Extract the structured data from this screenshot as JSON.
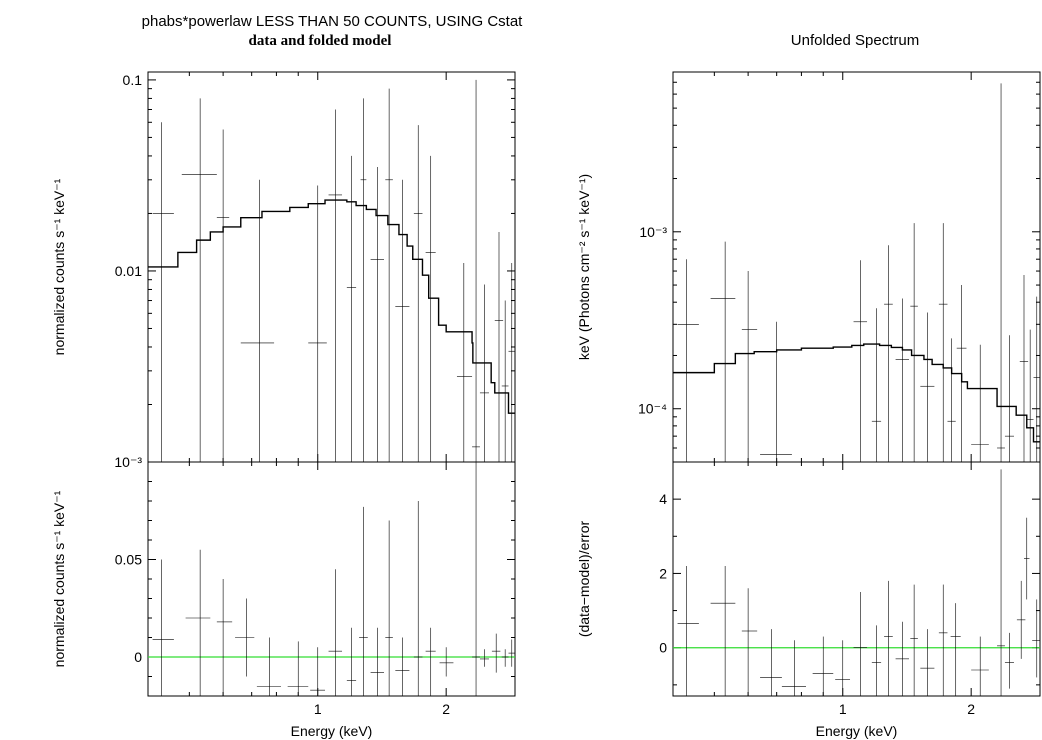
{
  "left_title": "phabs*powerlaw LESS THAN 50 COUNTS, USING Cstat",
  "left_subtitle": "data and folded model",
  "right_title": "Unfolded Spectrum",
  "colors": {
    "data": "#000000",
    "model": "#000000",
    "zero_line": "#33dd33"
  },
  "chart_data": [
    {
      "type": "scatter",
      "panel": "top-left",
      "ylabel": "normalized counts s⁻¹ keV⁻¹",
      "xscale": "log",
      "yscale": "log",
      "xlim": [
        0.4,
        2.9
      ],
      "ylim": [
        0.001,
        0.11
      ],
      "yticks": [
        {
          "v": 0.001,
          "label": "10⁻³"
        },
        {
          "v": 0.01,
          "label": "0.01"
        },
        {
          "v": 0.1,
          "label": "0.1"
        }
      ],
      "points": [
        {
          "x": 0.43,
          "xlo": 0.41,
          "xhi": 0.46,
          "y": 0.02,
          "ylo": 0.001,
          "yhi": 0.06
        },
        {
          "x": 0.53,
          "xlo": 0.48,
          "xhi": 0.58,
          "y": 0.032,
          "ylo": 0.001,
          "yhi": 0.08
        },
        {
          "x": 0.6,
          "xlo": 0.58,
          "xhi": 0.62,
          "y": 0.019,
          "ylo": 0.001,
          "yhi": 0.055
        },
        {
          "x": 0.73,
          "xlo": 0.66,
          "xhi": 0.79,
          "y": 0.0042,
          "ylo": 0.001,
          "yhi": 0.03
        },
        {
          "x": 1.0,
          "xlo": 0.95,
          "xhi": 1.05,
          "y": 0.0042,
          "ylo": 0.001,
          "yhi": 0.028
        },
        {
          "x": 1.1,
          "xlo": 1.06,
          "xhi": 1.14,
          "y": 0.025,
          "ylo": 0.001,
          "yhi": 0.07
        },
        {
          "x": 1.2,
          "xlo": 1.17,
          "xhi": 1.23,
          "y": 0.0082,
          "ylo": 0.001,
          "yhi": 0.04
        },
        {
          "x": 1.28,
          "xlo": 1.26,
          "xhi": 1.3,
          "y": 0.03,
          "ylo": 0.001,
          "yhi": 0.08
        },
        {
          "x": 1.38,
          "xlo": 1.33,
          "xhi": 1.43,
          "y": 0.0115,
          "ylo": 0.001,
          "yhi": 0.035
        },
        {
          "x": 1.47,
          "xlo": 1.44,
          "xhi": 1.5,
          "y": 0.03,
          "ylo": 0.001,
          "yhi": 0.09
        },
        {
          "x": 1.58,
          "xlo": 1.52,
          "xhi": 1.64,
          "y": 0.0065,
          "ylo": 0.001,
          "yhi": 0.03
        },
        {
          "x": 1.72,
          "xlo": 1.68,
          "xhi": 1.76,
          "y": 0.02,
          "ylo": 0.001,
          "yhi": 0.058
        },
        {
          "x": 1.84,
          "xlo": 1.79,
          "xhi": 1.89,
          "y": 0.0125,
          "ylo": 0.001,
          "yhi": 0.04
        },
        {
          "x": 2.2,
          "xlo": 2.12,
          "xhi": 2.3,
          "y": 0.0028,
          "ylo": 0.001,
          "yhi": 0.011
        },
        {
          "x": 2.35,
          "xlo": 2.3,
          "xhi": 2.4,
          "y": 0.0012,
          "ylo": 0.001,
          "yhi": 0.1
        },
        {
          "x": 2.46,
          "xlo": 2.4,
          "xhi": 2.52,
          "y": 0.0023,
          "ylo": 0.001,
          "yhi": 0.0085
        },
        {
          "x": 2.66,
          "xlo": 2.6,
          "xhi": 2.72,
          "y": 0.0055,
          "ylo": 0.001,
          "yhi": 0.016
        },
        {
          "x": 2.75,
          "xlo": 2.7,
          "xhi": 2.8,
          "y": 0.0025,
          "ylo": 0.001,
          "yhi": 0.007
        },
        {
          "x": 2.85,
          "xlo": 2.8,
          "xhi": 2.9,
          "y": 0.0038,
          "ylo": 0.001,
          "yhi": 0.011
        }
      ],
      "model_step": [
        [
          0.4,
          0.0105
        ],
        [
          0.47,
          0.0125
        ],
        [
          0.52,
          0.0145
        ],
        [
          0.56,
          0.016
        ],
        [
          0.6,
          0.017
        ],
        [
          0.66,
          0.019
        ],
        [
          0.74,
          0.0205
        ],
        [
          0.86,
          0.0215
        ],
        [
          0.95,
          0.0225
        ],
        [
          1.04,
          0.0235
        ],
        [
          1.1,
          0.0235
        ],
        [
          1.17,
          0.023
        ],
        [
          1.23,
          0.022
        ],
        [
          1.3,
          0.021
        ],
        [
          1.37,
          0.0195
        ],
        [
          1.46,
          0.0175
        ],
        [
          1.55,
          0.0155
        ],
        [
          1.62,
          0.0135
        ],
        [
          1.67,
          0.0115
        ],
        [
          1.76,
          0.0095
        ],
        [
          1.82,
          0.0072
        ],
        [
          1.92,
          0.0052
        ],
        [
          2.0,
          0.0048
        ],
        [
          2.3,
          0.0042
        ],
        [
          2.31,
          0.0033
        ],
        [
          2.5,
          0.0033
        ],
        [
          2.55,
          0.0026
        ],
        [
          2.6,
          0.0023
        ],
        [
          2.8,
          0.0018
        ],
        [
          2.9,
          0.0018
        ]
      ]
    },
    {
      "type": "scatter",
      "panel": "bottom-left",
      "ylabel": "normalized counts s⁻¹ keV⁻¹",
      "xlabel": "Energy (keV)",
      "xscale": "log",
      "yscale": "linear",
      "xlim": [
        0.4,
        2.9
      ],
      "ylim": [
        -0.02,
        0.1
      ],
      "yticks": [
        {
          "v": 0,
          "label": "0"
        },
        {
          "v": 0.05,
          "label": "0.05"
        }
      ],
      "xticks": [
        {
          "v": 1,
          "label": "1"
        },
        {
          "v": 2,
          "label": "2"
        }
      ],
      "points": [
        {
          "x": 0.43,
          "xlo": 0.41,
          "xhi": 0.46,
          "y": 0.009,
          "ylo": -0.02,
          "yhi": 0.05
        },
        {
          "x": 0.53,
          "xlo": 0.49,
          "xhi": 0.56,
          "y": 0.02,
          "ylo": -0.02,
          "yhi": 0.055
        },
        {
          "x": 0.6,
          "xlo": 0.58,
          "xhi": 0.63,
          "y": 0.018,
          "ylo": -0.02,
          "yhi": 0.04
        },
        {
          "x": 0.68,
          "xlo": 0.64,
          "xhi": 0.71,
          "y": 0.01,
          "ylo": -0.01,
          "yhi": 0.03
        },
        {
          "x": 0.77,
          "xlo": 0.72,
          "xhi": 0.82,
          "y": -0.015,
          "ylo": -0.02,
          "yhi": 0.01
        },
        {
          "x": 0.9,
          "xlo": 0.85,
          "xhi": 0.95,
          "y": -0.015,
          "ylo": -0.02,
          "yhi": 0.008
        },
        {
          "x": 1.0,
          "xlo": 0.96,
          "xhi": 1.04,
          "y": -0.017,
          "ylo": -0.02,
          "yhi": 0.005
        },
        {
          "x": 1.1,
          "xlo": 1.06,
          "xhi": 1.14,
          "y": 0.003,
          "ylo": -0.02,
          "yhi": 0.045
        },
        {
          "x": 1.2,
          "xlo": 1.17,
          "xhi": 1.23,
          "y": -0.012,
          "ylo": -0.02,
          "yhi": 0.015
        },
        {
          "x": 1.28,
          "xlo": 1.25,
          "xhi": 1.31,
          "y": 0.01,
          "ylo": -0.02,
          "yhi": 0.077
        },
        {
          "x": 1.38,
          "xlo": 1.33,
          "xhi": 1.43,
          "y": -0.008,
          "ylo": -0.02,
          "yhi": 0.015
        },
        {
          "x": 1.47,
          "xlo": 1.44,
          "xhi": 1.5,
          "y": 0.01,
          "ylo": -0.02,
          "yhi": 0.07
        },
        {
          "x": 1.58,
          "xlo": 1.52,
          "xhi": 1.64,
          "y": -0.007,
          "ylo": -0.02,
          "yhi": 0.01
        },
        {
          "x": 1.72,
          "xlo": 1.68,
          "xhi": 1.76,
          "y": 0.0,
          "ylo": -0.02,
          "yhi": 0.08
        },
        {
          "x": 1.84,
          "xlo": 1.79,
          "xhi": 1.89,
          "y": 0.003,
          "ylo": -0.02,
          "yhi": 0.015
        },
        {
          "x": 2.0,
          "xlo": 1.93,
          "xhi": 2.08,
          "y": -0.003,
          "ylo": -0.01,
          "yhi": 0.005
        },
        {
          "x": 2.35,
          "xlo": 2.3,
          "xhi": 2.4,
          "y": 0.0,
          "ylo": -0.02,
          "yhi": 0.1
        },
        {
          "x": 2.46,
          "xlo": 2.4,
          "xhi": 2.52,
          "y": -0.001,
          "ylo": -0.005,
          "yhi": 0.004
        },
        {
          "x": 2.62,
          "xlo": 2.56,
          "xhi": 2.68,
          "y": 0.003,
          "ylo": -0.008,
          "yhi": 0.012
        },
        {
          "x": 2.75,
          "xlo": 2.7,
          "xhi": 2.8,
          "y": 0.0,
          "ylo": -0.005,
          "yhi": 0.004
        },
        {
          "x": 2.85,
          "xlo": 2.8,
          "xhi": 2.9,
          "y": 0.002,
          "ylo": -0.005,
          "yhi": 0.009
        }
      ]
    },
    {
      "type": "scatter",
      "panel": "top-right",
      "title": "Unfolded Spectrum",
      "ylabel": "keV (Photons cm⁻² s⁻¹ keV⁻¹)",
      "xscale": "log",
      "yscale": "log",
      "xlim": [
        0.4,
        2.9
      ],
      "ylim": [
        5e-05,
        0.008
      ],
      "yticks": [
        {
          "v": 0.0001,
          "label": "10⁻⁴"
        },
        {
          "v": 0.001,
          "label": "10⁻³"
        }
      ],
      "points": [
        {
          "x": 0.43,
          "xlo": 0.41,
          "xhi": 0.46,
          "y": 0.0003,
          "ylo": 5e-05,
          "yhi": 0.0007
        },
        {
          "x": 0.53,
          "xlo": 0.49,
          "xhi": 0.56,
          "y": 0.00042,
          "ylo": 5e-05,
          "yhi": 0.00088
        },
        {
          "x": 0.6,
          "xlo": 0.58,
          "xhi": 0.63,
          "y": 0.00028,
          "ylo": 5e-05,
          "yhi": 0.0006
        },
        {
          "x": 0.7,
          "xlo": 0.64,
          "xhi": 0.76,
          "y": 5.5e-05,
          "ylo": 5e-05,
          "yhi": 0.00031
        },
        {
          "x": 1.1,
          "xlo": 1.06,
          "xhi": 1.14,
          "y": 0.00031,
          "ylo": 5e-05,
          "yhi": 0.00069
        },
        {
          "x": 1.2,
          "xlo": 1.17,
          "xhi": 1.23,
          "y": 8.5e-05,
          "ylo": 5e-05,
          "yhi": 0.00037
        },
        {
          "x": 1.28,
          "xlo": 1.25,
          "xhi": 1.31,
          "y": 0.00039,
          "ylo": 5e-05,
          "yhi": 0.00084
        },
        {
          "x": 1.38,
          "xlo": 1.33,
          "xhi": 1.43,
          "y": 0.00019,
          "ylo": 5e-05,
          "yhi": 0.00042
        },
        {
          "x": 1.47,
          "xlo": 1.44,
          "xhi": 1.5,
          "y": 0.00038,
          "ylo": 5e-05,
          "yhi": 0.00112
        },
        {
          "x": 1.58,
          "xlo": 1.52,
          "xhi": 1.64,
          "y": 0.000134,
          "ylo": 5e-05,
          "yhi": 0.00035
        },
        {
          "x": 1.72,
          "xlo": 1.68,
          "xhi": 1.76,
          "y": 0.00039,
          "ylo": 5e-05,
          "yhi": 0.00112
        },
        {
          "x": 1.8,
          "xlo": 1.76,
          "xhi": 1.84,
          "y": 8.5e-05,
          "ylo": 5e-05,
          "yhi": 0.00025
        },
        {
          "x": 1.9,
          "xlo": 1.85,
          "xhi": 1.95,
          "y": 0.00022,
          "ylo": 5e-05,
          "yhi": 0.0005
        },
        {
          "x": 2.1,
          "xlo": 2.0,
          "xhi": 2.2,
          "y": 6.3e-05,
          "ylo": 5e-05,
          "yhi": 0.00023
        },
        {
          "x": 2.35,
          "xlo": 2.3,
          "xhi": 2.4,
          "y": 6e-05,
          "ylo": 5e-05,
          "yhi": 0.0069
        },
        {
          "x": 2.46,
          "xlo": 2.4,
          "xhi": 2.52,
          "y": 7e-05,
          "ylo": 5e-05,
          "yhi": 0.00026
        },
        {
          "x": 2.66,
          "xlo": 2.6,
          "xhi": 2.72,
          "y": 0.000185,
          "ylo": 5e-05,
          "yhi": 0.00057
        },
        {
          "x": 2.75,
          "xlo": 2.7,
          "xhi": 2.8,
          "y": 8.7e-05,
          "ylo": 5e-05,
          "yhi": 0.00028
        },
        {
          "x": 2.85,
          "xlo": 2.8,
          "xhi": 2.9,
          "y": 0.00015,
          "ylo": 5e-05,
          "yhi": 0.00043
        }
      ],
      "model_step": [
        [
          0.4,
          0.00016
        ],
        [
          0.5,
          0.00018
        ],
        [
          0.56,
          0.000205
        ],
        [
          0.62,
          0.00021
        ],
        [
          0.7,
          0.000215
        ],
        [
          0.8,
          0.00022
        ],
        [
          0.95,
          0.000223
        ],
        [
          1.05,
          0.000228
        ],
        [
          1.12,
          0.000232
        ],
        [
          1.22,
          0.000228
        ],
        [
          1.3,
          0.000222
        ],
        [
          1.38,
          0.000215
        ],
        [
          1.45,
          0.0002
        ],
        [
          1.55,
          0.00019
        ],
        [
          1.62,
          0.000178
        ],
        [
          1.72,
          0.00017
        ],
        [
          1.8,
          0.000158
        ],
        [
          1.9,
          0.000142
        ],
        [
          1.96,
          0.00013
        ],
        [
          2.3,
          0.000103
        ],
        [
          2.55,
          9.2e-05
        ],
        [
          2.7,
          7.8e-05
        ],
        [
          2.8,
          6.5e-05
        ],
        [
          2.9,
          6.5e-05
        ]
      ]
    },
    {
      "type": "scatter",
      "panel": "bottom-right",
      "ylabel": "(data−model)/error",
      "xlabel": "Energy (keV)",
      "xscale": "log",
      "yscale": "linear",
      "xlim": [
        0.4,
        2.9
      ],
      "ylim": [
        -1.3,
        5.0
      ],
      "yticks": [
        {
          "v": 0,
          "label": "0"
        },
        {
          "v": 2,
          "label": "2"
        },
        {
          "v": 4,
          "label": "4"
        }
      ],
      "xticks": [
        {
          "v": 1,
          "label": "1"
        },
        {
          "v": 2,
          "label": "2"
        }
      ],
      "points": [
        {
          "x": 0.43,
          "xlo": 0.41,
          "xhi": 0.46,
          "y": 0.65,
          "ylo": -1.3,
          "yhi": 2.2
        },
        {
          "x": 0.53,
          "xlo": 0.49,
          "xhi": 0.56,
          "y": 1.2,
          "ylo": -1.3,
          "yhi": 2.2
        },
        {
          "x": 0.6,
          "xlo": 0.58,
          "xhi": 0.63,
          "y": 0.45,
          "ylo": -1.3,
          "yhi": 1.6
        },
        {
          "x": 0.68,
          "xlo": 0.64,
          "xhi": 0.72,
          "y": -0.8,
          "ylo": -1.3,
          "yhi": 0.5
        },
        {
          "x": 0.77,
          "xlo": 0.72,
          "xhi": 0.82,
          "y": -1.05,
          "ylo": -1.3,
          "yhi": 0.2
        },
        {
          "x": 0.9,
          "xlo": 0.85,
          "xhi": 0.95,
          "y": -0.7,
          "ylo": -1.3,
          "yhi": 0.3
        },
        {
          "x": 1.0,
          "xlo": 0.96,
          "xhi": 1.04,
          "y": -0.85,
          "ylo": -1.3,
          "yhi": 0.2
        },
        {
          "x": 1.1,
          "xlo": 1.06,
          "xhi": 1.14,
          "y": 0.0,
          "ylo": -1.3,
          "yhi": 1.5
        },
        {
          "x": 1.2,
          "xlo": 1.17,
          "xhi": 1.23,
          "y": -0.4,
          "ylo": -1.3,
          "yhi": 0.6
        },
        {
          "x": 1.28,
          "xlo": 1.25,
          "xhi": 1.31,
          "y": 0.3,
          "ylo": -1.3,
          "yhi": 1.8
        },
        {
          "x": 1.38,
          "xlo": 1.33,
          "xhi": 1.43,
          "y": -0.3,
          "ylo": -1.3,
          "yhi": 0.7
        },
        {
          "x": 1.47,
          "xlo": 1.44,
          "xhi": 1.5,
          "y": 0.25,
          "ylo": -1.3,
          "yhi": 1.7
        },
        {
          "x": 1.58,
          "xlo": 1.52,
          "xhi": 1.64,
          "y": -0.55,
          "ylo": -1.3,
          "yhi": 0.5
        },
        {
          "x": 1.72,
          "xlo": 1.68,
          "xhi": 1.76,
          "y": 0.4,
          "ylo": -1.3,
          "yhi": 1.7
        },
        {
          "x": 1.84,
          "xlo": 1.79,
          "xhi": 1.89,
          "y": 0.3,
          "ylo": -1.3,
          "yhi": 1.2
        },
        {
          "x": 2.1,
          "xlo": 2.0,
          "xhi": 2.2,
          "y": -0.6,
          "ylo": -1.3,
          "yhi": 0.3
        },
        {
          "x": 2.35,
          "xlo": 2.3,
          "xhi": 2.4,
          "y": 0.05,
          "ylo": -1.3,
          "yhi": 4.8
        },
        {
          "x": 2.46,
          "xlo": 2.4,
          "xhi": 2.52,
          "y": -0.4,
          "ylo": -1.1,
          "yhi": 0.4
        },
        {
          "x": 2.62,
          "xlo": 2.56,
          "xhi": 2.68,
          "y": 0.75,
          "ylo": -0.3,
          "yhi": 1.8
        },
        {
          "x": 2.7,
          "xlo": 2.66,
          "xhi": 2.74,
          "y": 2.4,
          "ylo": 1.3,
          "yhi": 3.5
        },
        {
          "x": 2.85,
          "xlo": 2.78,
          "xhi": 2.9,
          "y": 0.2,
          "ylo": -0.8,
          "yhi": 1.3
        }
      ]
    }
  ]
}
